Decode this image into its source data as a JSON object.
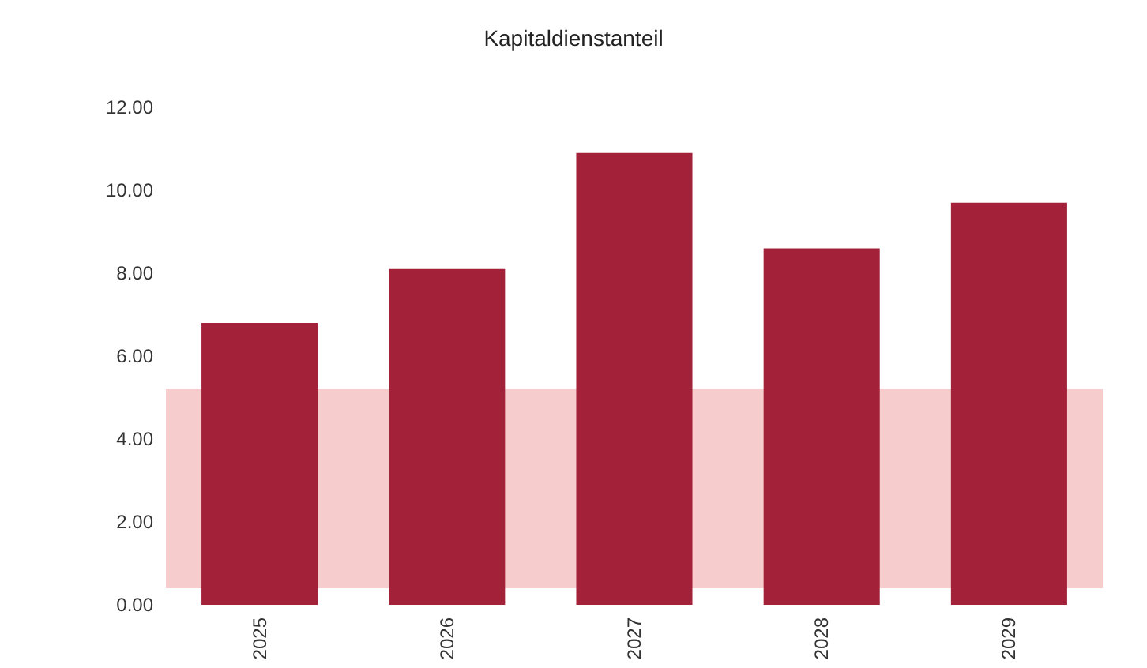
{
  "chart_data": {
    "type": "bar",
    "title": "Kapitaldienstanteil",
    "categories": [
      "2025",
      "2026",
      "2027",
      "2028",
      "2029"
    ],
    "values": [
      6.8,
      8.1,
      10.9,
      8.6,
      9.7
    ],
    "color": "#a3223a",
    "ylim": [
      0,
      12
    ],
    "yticks": [
      {
        "value": 0,
        "label": "0.00"
      },
      {
        "value": 2,
        "label": "2.00"
      },
      {
        "value": 4,
        "label": "4.00"
      },
      {
        "value": 6,
        "label": "6.00"
      },
      {
        "value": 8,
        "label": "8.00"
      },
      {
        "value": 10,
        "label": "10.00"
      },
      {
        "value": 12,
        "label": "12.00"
      }
    ],
    "bands": [
      {
        "axis": "y",
        "from": 0.4,
        "to": 5.2,
        "color": "#f6cccc"
      }
    ],
    "grid": false
  }
}
